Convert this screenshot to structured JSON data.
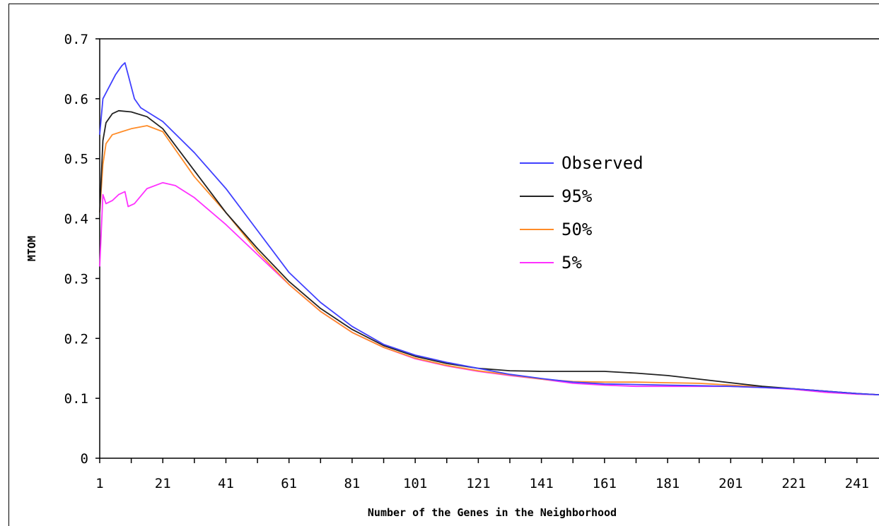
{
  "chart_data": {
    "type": "line",
    "xlabel": "Number of the Genes in the Neighborhood",
    "ylabel": "MTOM",
    "xlim": [
      1,
      248
    ],
    "ylim": [
      0,
      0.7
    ],
    "xticks": [
      1,
      21,
      41,
      61,
      81,
      101,
      121,
      141,
      161,
      181,
      201,
      221,
      241
    ],
    "xtick_labels": [
      "1",
      "21",
      "41",
      "61",
      "81",
      "101",
      "121",
      "141",
      "161",
      "181",
      "201",
      "221",
      "241"
    ],
    "yticks": [
      0,
      0.1,
      0.2,
      0.3,
      0.4,
      0.5,
      0.6,
      0.7
    ],
    "ytick_labels": [
      "0",
      "0.1",
      "0.2",
      "0.3",
      "0.4",
      "0.5",
      "0.6",
      "0.7"
    ],
    "legend_position": "center-right",
    "series": [
      {
        "name": "Observed",
        "color": "#4040ff",
        "points": [
          [
            1,
            0.54
          ],
          [
            2,
            0.6
          ],
          [
            4,
            0.62
          ],
          [
            6,
            0.64
          ],
          [
            8,
            0.655
          ],
          [
            9,
            0.66
          ],
          [
            10,
            0.64
          ],
          [
            12,
            0.6
          ],
          [
            14,
            0.585
          ],
          [
            21,
            0.562
          ],
          [
            31,
            0.51
          ],
          [
            41,
            0.45
          ],
          [
            51,
            0.38
          ],
          [
            61,
            0.31
          ],
          [
            71,
            0.26
          ],
          [
            81,
            0.22
          ],
          [
            91,
            0.19
          ],
          [
            101,
            0.172
          ],
          [
            111,
            0.16
          ],
          [
            121,
            0.15
          ],
          [
            131,
            0.14
          ],
          [
            141,
            0.133
          ],
          [
            151,
            0.127
          ],
          [
            161,
            0.124
          ],
          [
            171,
            0.123
          ],
          [
            181,
            0.122
          ],
          [
            191,
            0.121
          ],
          [
            201,
            0.12
          ],
          [
            211,
            0.118
          ],
          [
            221,
            0.116
          ],
          [
            231,
            0.112
          ],
          [
            241,
            0.108
          ],
          [
            248,
            0.106
          ]
        ]
      },
      {
        "name": "95%",
        "color": "#222222",
        "points": [
          [
            1,
            0.41
          ],
          [
            2,
            0.53
          ],
          [
            3,
            0.56
          ],
          [
            5,
            0.575
          ],
          [
            7,
            0.58
          ],
          [
            11,
            0.578
          ],
          [
            16,
            0.57
          ],
          [
            21,
            0.55
          ],
          [
            31,
            0.48
          ],
          [
            41,
            0.41
          ],
          [
            51,
            0.35
          ],
          [
            61,
            0.295
          ],
          [
            71,
            0.25
          ],
          [
            81,
            0.215
          ],
          [
            91,
            0.188
          ],
          [
            101,
            0.17
          ],
          [
            111,
            0.158
          ],
          [
            121,
            0.15
          ],
          [
            131,
            0.146
          ],
          [
            141,
            0.145
          ],
          [
            151,
            0.145
          ],
          [
            161,
            0.145
          ],
          [
            171,
            0.142
          ],
          [
            181,
            0.138
          ],
          [
            191,
            0.132
          ],
          [
            201,
            0.126
          ],
          [
            211,
            0.12
          ],
          [
            221,
            0.116
          ],
          [
            231,
            0.112
          ],
          [
            241,
            0.108
          ],
          [
            248,
            0.106
          ]
        ]
      },
      {
        "name": "50%",
        "color": "#ff8c28",
        "points": [
          [
            1,
            0.41
          ],
          [
            2,
            0.49
          ],
          [
            3,
            0.525
          ],
          [
            5,
            0.54
          ],
          [
            8,
            0.545
          ],
          [
            11,
            0.55
          ],
          [
            16,
            0.555
          ],
          [
            21,
            0.545
          ],
          [
            31,
            0.47
          ],
          [
            41,
            0.41
          ],
          [
            51,
            0.345
          ],
          [
            61,
            0.29
          ],
          [
            71,
            0.245
          ],
          [
            81,
            0.21
          ],
          [
            91,
            0.185
          ],
          [
            101,
            0.167
          ],
          [
            111,
            0.155
          ],
          [
            121,
            0.146
          ],
          [
            131,
            0.139
          ],
          [
            141,
            0.132
          ],
          [
            151,
            0.128
          ],
          [
            161,
            0.127
          ],
          [
            171,
            0.127
          ],
          [
            181,
            0.126
          ],
          [
            191,
            0.125
          ],
          [
            201,
            0.122
          ],
          [
            211,
            0.119
          ],
          [
            221,
            0.116
          ],
          [
            231,
            0.112
          ],
          [
            241,
            0.108
          ],
          [
            248,
            0.106
          ]
        ]
      },
      {
        "name": "5%",
        "color": "#ff30ff",
        "points": [
          [
            1,
            0.32
          ],
          [
            2,
            0.44
          ],
          [
            3,
            0.425
          ],
          [
            5,
            0.43
          ],
          [
            7,
            0.44
          ],
          [
            9,
            0.445
          ],
          [
            10,
            0.42
          ],
          [
            12,
            0.425
          ],
          [
            16,
            0.45
          ],
          [
            21,
            0.46
          ],
          [
            25,
            0.455
          ],
          [
            31,
            0.435
          ],
          [
            41,
            0.39
          ],
          [
            51,
            0.34
          ],
          [
            61,
            0.29
          ],
          [
            71,
            0.245
          ],
          [
            81,
            0.21
          ],
          [
            91,
            0.185
          ],
          [
            101,
            0.166
          ],
          [
            111,
            0.154
          ],
          [
            121,
            0.145
          ],
          [
            131,
            0.138
          ],
          [
            141,
            0.132
          ],
          [
            151,
            0.125
          ],
          [
            161,
            0.122
          ],
          [
            171,
            0.12
          ],
          [
            181,
            0.12
          ],
          [
            191,
            0.12
          ],
          [
            201,
            0.12
          ],
          [
            211,
            0.118
          ],
          [
            221,
            0.115
          ],
          [
            231,
            0.11
          ],
          [
            241,
            0.107
          ],
          [
            248,
            0.106
          ]
        ]
      }
    ]
  }
}
